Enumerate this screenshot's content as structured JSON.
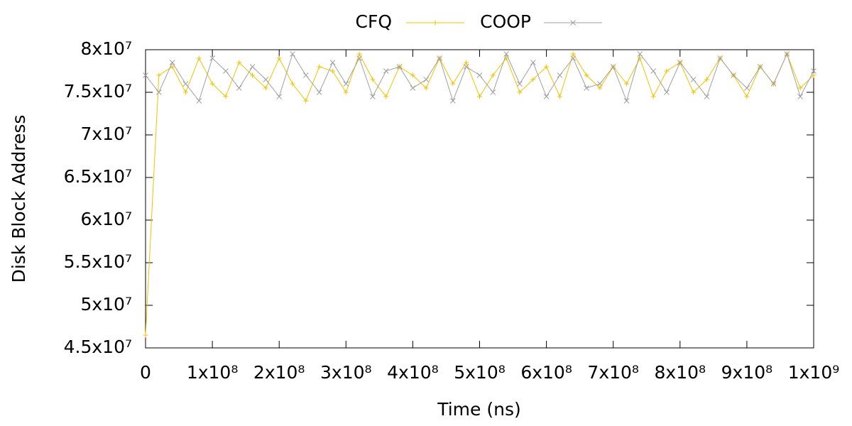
{
  "chart_data": {
    "type": "line",
    "xlabel": "Time (ns)",
    "ylabel": "Disk Block Address",
    "xlim": [
      0,
      1000000000
    ],
    "ylim": [
      45000000,
      80000000
    ],
    "xticks": [
      0,
      {
        "value": 100000000,
        "label": "1x10⁸"
      },
      {
        "value": 200000000,
        "label": "2x10⁸"
      },
      {
        "value": 300000000,
        "label": "3x10⁸"
      },
      {
        "value": 400000000,
        "label": "4x10⁸"
      },
      {
        "value": 500000000,
        "label": "5x10⁸"
      },
      {
        "value": 600000000,
        "label": "6x10⁸"
      },
      {
        "value": 700000000,
        "label": "7x10⁸"
      },
      {
        "value": 800000000,
        "label": "8x10⁸"
      },
      {
        "value": 900000000,
        "label": "9x10⁸"
      },
      {
        "value": 1000000000,
        "label": "1x10⁹"
      }
    ],
    "yticks": [
      {
        "value": 45000000,
        "label": "4.5x10⁷"
      },
      {
        "value": 50000000,
        "label": "5x10⁷"
      },
      {
        "value": 55000000,
        "label": "5.5x10⁷"
      },
      {
        "value": 60000000,
        "label": "6x10⁷"
      },
      {
        "value": 65000000,
        "label": "6.5x10⁷"
      },
      {
        "value": 70000000,
        "label": "7x10⁷"
      },
      {
        "value": 75000000,
        "label": "7.5x10⁷"
      },
      {
        "value": 80000000,
        "label": "8x10⁷"
      }
    ],
    "legend": "top",
    "x": [
      0,
      20000000,
      40000000,
      60000000,
      80000000,
      100000000,
      120000000,
      140000000,
      160000000,
      180000000,
      200000000,
      220000000,
      240000000,
      260000000,
      280000000,
      300000000,
      320000000,
      340000000,
      360000000,
      380000000,
      400000000,
      420000000,
      440000000,
      460000000,
      480000000,
      500000000,
      520000000,
      540000000,
      560000000,
      580000000,
      600000000,
      620000000,
      640000000,
      660000000,
      680000000,
      700000000,
      720000000,
      740000000,
      760000000,
      780000000,
      800000000,
      820000000,
      840000000,
      860000000,
      880000000,
      900000000,
      920000000,
      940000000,
      960000000,
      980000000,
      1000000000
    ],
    "series": [
      {
        "name": "CFQ",
        "color": "#f2c200",
        "marker": "plus",
        "values": [
          46500000,
          77000000,
          78000000,
          75000000,
          79000000,
          76000000,
          74500000,
          78500000,
          77000000,
          75500000,
          79000000,
          76000000,
          74000000,
          78000000,
          77500000,
          75000000,
          79500000,
          76500000,
          74500000,
          78000000,
          77000000,
          75500000,
          79000000,
          76000000,
          78500000,
          74500000,
          77000000,
          79000000,
          75000000,
          76500000,
          78000000,
          74500000,
          79500000,
          77000000,
          75500000,
          78000000,
          76000000,
          79000000,
          74500000,
          77500000,
          78500000,
          75000000,
          76500000,
          79000000,
          77000000,
          74500000,
          78000000,
          76000000,
          79500000,
          75500000,
          77000000
        ]
      },
      {
        "name": "COOP",
        "color": "#a0a0a0",
        "marker": "cross",
        "values": [
          77000000,
          75000000,
          78500000,
          76000000,
          74000000,
          79000000,
          77500000,
          75500000,
          78000000,
          76500000,
          74500000,
          79500000,
          77000000,
          75000000,
          78500000,
          76000000,
          79000000,
          74500000,
          77500000,
          78000000,
          75500000,
          76500000,
          79000000,
          74000000,
          78000000,
          77000000,
          75000000,
          79500000,
          76000000,
          78500000,
          74500000,
          77000000,
          79000000,
          75500000,
          76000000,
          78000000,
          74000000,
          79500000,
          77500000,
          75000000,
          78500000,
          76500000,
          74500000,
          79000000,
          77000000,
          75500000,
          78000000,
          76000000,
          79500000,
          74500000,
          77500000
        ]
      }
    ]
  }
}
